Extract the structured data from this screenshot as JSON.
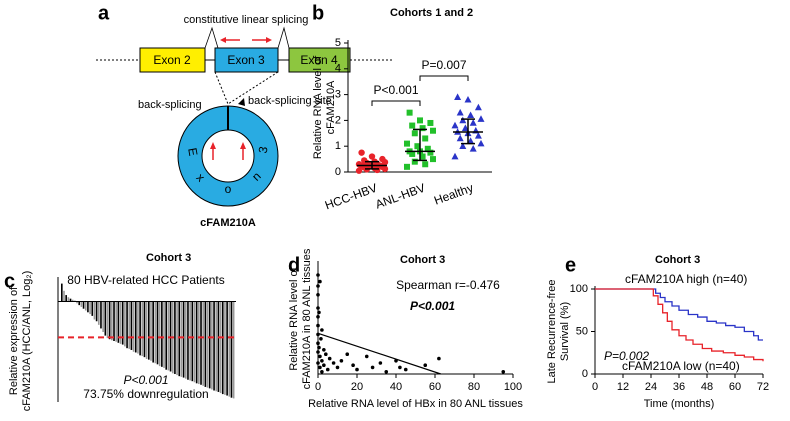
{
  "diagram": {
    "panel": "a",
    "exons": [
      "Exon 2",
      "Exon 3",
      "Exon 4"
    ],
    "linear_label": "constitutive linear splicing",
    "back_label": "back-splicing",
    "site_label": "back-splicing site",
    "circle_letters": [
      "E",
      "x",
      "o",
      "n",
      "3"
    ],
    "circle_name": "cFAM210A"
  },
  "chart_data": [
    {
      "type": "strip",
      "panel": "b",
      "title": "Cohorts 1 and 2",
      "y_label": [
        "Relative RNA level of",
        "cFAM210A"
      ],
      "categories": [
        "HCC-HBV",
        "ANL-HBV",
        "Healthy"
      ],
      "series": [
        {
          "name": "HCC-HBV",
          "color": "#e8232a",
          "marker": "circle",
          "values": [
            0.05,
            0.08,
            0.1,
            0.12,
            0.15,
            0.18,
            0.2,
            0.22,
            0.25,
            0.25,
            0.28,
            0.3,
            0.32,
            0.35,
            0.38,
            0.4,
            0.45,
            0.5,
            0.6,
            0.75
          ],
          "median": 0.25,
          "lower": 0.12,
          "upper": 0.4
        },
        {
          "name": "ANL-HBV",
          "color": "#22c02a",
          "marker": "square",
          "values": [
            0.2,
            0.3,
            0.4,
            0.5,
            0.6,
            0.7,
            0.75,
            0.8,
            0.8,
            0.9,
            1.0,
            1.1,
            1.3,
            1.5,
            1.6,
            1.7,
            1.8,
            1.9,
            2.0,
            2.3
          ],
          "median": 0.8,
          "lower": 0.45,
          "upper": 1.65
        },
        {
          "name": "Healthy",
          "color": "#2a34c8",
          "marker": "triangle",
          "values": [
            0.6,
            0.9,
            1.0,
            1.1,
            1.2,
            1.3,
            1.4,
            1.5,
            1.55,
            1.6,
            1.7,
            1.8,
            1.9,
            2.0,
            2.05,
            2.2,
            2.3,
            2.5,
            2.8,
            2.9
          ],
          "median": 1.55,
          "lower": 1.1,
          "upper": 2.05
        }
      ],
      "ylim": [
        0,
        5
      ],
      "yticks": [
        0,
        1,
        2,
        3,
        4,
        5
      ],
      "annotations": [
        "P<0.001",
        "P=0.007"
      ]
    },
    {
      "type": "bar",
      "panel": "c",
      "title": "Cohort 3",
      "y_label": [
        "Relative expression of",
        "cFAM210A (HCC/ANL, Log₂)"
      ],
      "subtitle": "80 HBV-related HCC Patients",
      "annotations": [
        "P<0.001",
        "73.75% downregulation"
      ],
      "colors": [
        "#000000",
        "#999999"
      ],
      "ref_line": -1,
      "ref_color": "#e8232a",
      "values": [
        0.5,
        0.3,
        0.18,
        0.12,
        0.08,
        0.05,
        0.02,
        -0.05,
        -0.1,
        -0.15,
        -0.2,
        -0.25,
        -0.3,
        -0.35,
        -0.4,
        -0.5,
        -0.55,
        -0.65,
        -0.75,
        -0.85,
        -0.95,
        -1.02,
        -1.05,
        -1.08,
        -1.1,
        -1.12,
        -1.15,
        -1.18,
        -1.2,
        -1.25,
        -1.3,
        -1.32,
        -1.35,
        -1.4,
        -1.42,
        -1.45,
        -1.5,
        -1.52,
        -1.55,
        -1.6,
        -1.62,
        -1.65,
        -1.7,
        -1.72,
        -1.75,
        -1.8,
        -1.82,
        -1.85,
        -1.9,
        -1.92,
        -1.95,
        -2.0,
        -2.02,
        -2.05,
        -2.08,
        -2.1,
        -2.12,
        -2.15,
        -2.18,
        -2.2,
        -2.22,
        -2.25,
        -2.28,
        -2.3,
        -2.32,
        -2.35,
        -2.38,
        -2.4,
        -2.42,
        -2.45,
        -2.48,
        -2.5,
        -2.52,
        -2.55,
        -2.58,
        -2.6,
        -2.62,
        -2.65,
        -2.68,
        -2.7
      ],
      "ylim": [
        -2.8,
        0.6
      ]
    },
    {
      "type": "scatter",
      "panel": "d",
      "title": "Cohort 3",
      "y_label": [
        "Relative RNA level of",
        "cFAM210A in 80 ANL tissues"
      ],
      "x_label": "Relative RNA level of HBx in 80 ANL tissues",
      "annotations": [
        "Spearman r=-0.476",
        "P<0.001"
      ],
      "x": [
        0,
        0,
        0,
        0,
        0,
        0,
        0,
        0,
        0,
        0,
        0.5,
        0.5,
        1,
        1,
        1,
        1.5,
        2,
        2,
        2,
        3,
        3,
        4,
        5,
        6,
        8,
        10,
        12,
        15,
        18,
        20,
        25,
        28,
        32,
        35,
        40,
        42,
        45,
        55,
        62,
        95
      ],
      "values": [
        4.5,
        4.0,
        3.6,
        3.0,
        2.6,
        2.2,
        1.8,
        1.4,
        1.0,
        0.5,
        2.8,
        1.2,
        4.2,
        0.8,
        0.3,
        1.6,
        2.0,
        0.6,
        0.1,
        1.1,
        0.4,
        0.9,
        0.2,
        0.7,
        0.5,
        0.3,
        0.6,
        0.9,
        0.4,
        0.2,
        0.8,
        0.3,
        0.5,
        0.1,
        0.6,
        0.3,
        0.2,
        0.4,
        0.7,
        0.1
      ],
      "fit_x": [
        0,
        63
      ],
      "fit_y": [
        1.85,
        0
      ],
      "xlim": [
        0,
        100
      ],
      "xticks": [
        0,
        20,
        40,
        60,
        80,
        100
      ],
      "ylim": [
        0,
        5
      ]
    },
    {
      "type": "step",
      "panel": "e",
      "title": "Cohort 3",
      "y_label": [
        "Late Recurrence-free",
        "Survival (%)"
      ],
      "x_label": "Time (months)",
      "annotations": [
        "P=0.002"
      ],
      "series": [
        {
          "name": "cFAM210A high (n=40)",
          "color": "#2a34c8",
          "x": [
            0,
            24,
            26,
            28,
            30,
            33,
            36,
            40,
            44,
            48,
            52,
            56,
            60,
            64,
            68,
            70,
            72
          ],
          "values": [
            100,
            100,
            95,
            90,
            85,
            80,
            75,
            70,
            67,
            62,
            60,
            57,
            55,
            50,
            45,
            40,
            40
          ]
        },
        {
          "name": "cFAM210A low (n=40)",
          "color": "#e8232a",
          "x": [
            0,
            24,
            25,
            27,
            29,
            31,
            33,
            36,
            39,
            42,
            46,
            50,
            55,
            60,
            64,
            68,
            72
          ],
          "values": [
            100,
            100,
            92,
            82,
            72,
            62,
            52,
            45,
            40,
            35,
            30,
            27,
            25,
            22,
            20,
            17,
            15
          ]
        }
      ],
      "xlim": [
        0,
        72
      ],
      "xticks": [
        0,
        12,
        24,
        36,
        48,
        60,
        72
      ],
      "ylim": [
        0,
        100
      ],
      "yticks": [
        0,
        50,
        100
      ]
    }
  ]
}
